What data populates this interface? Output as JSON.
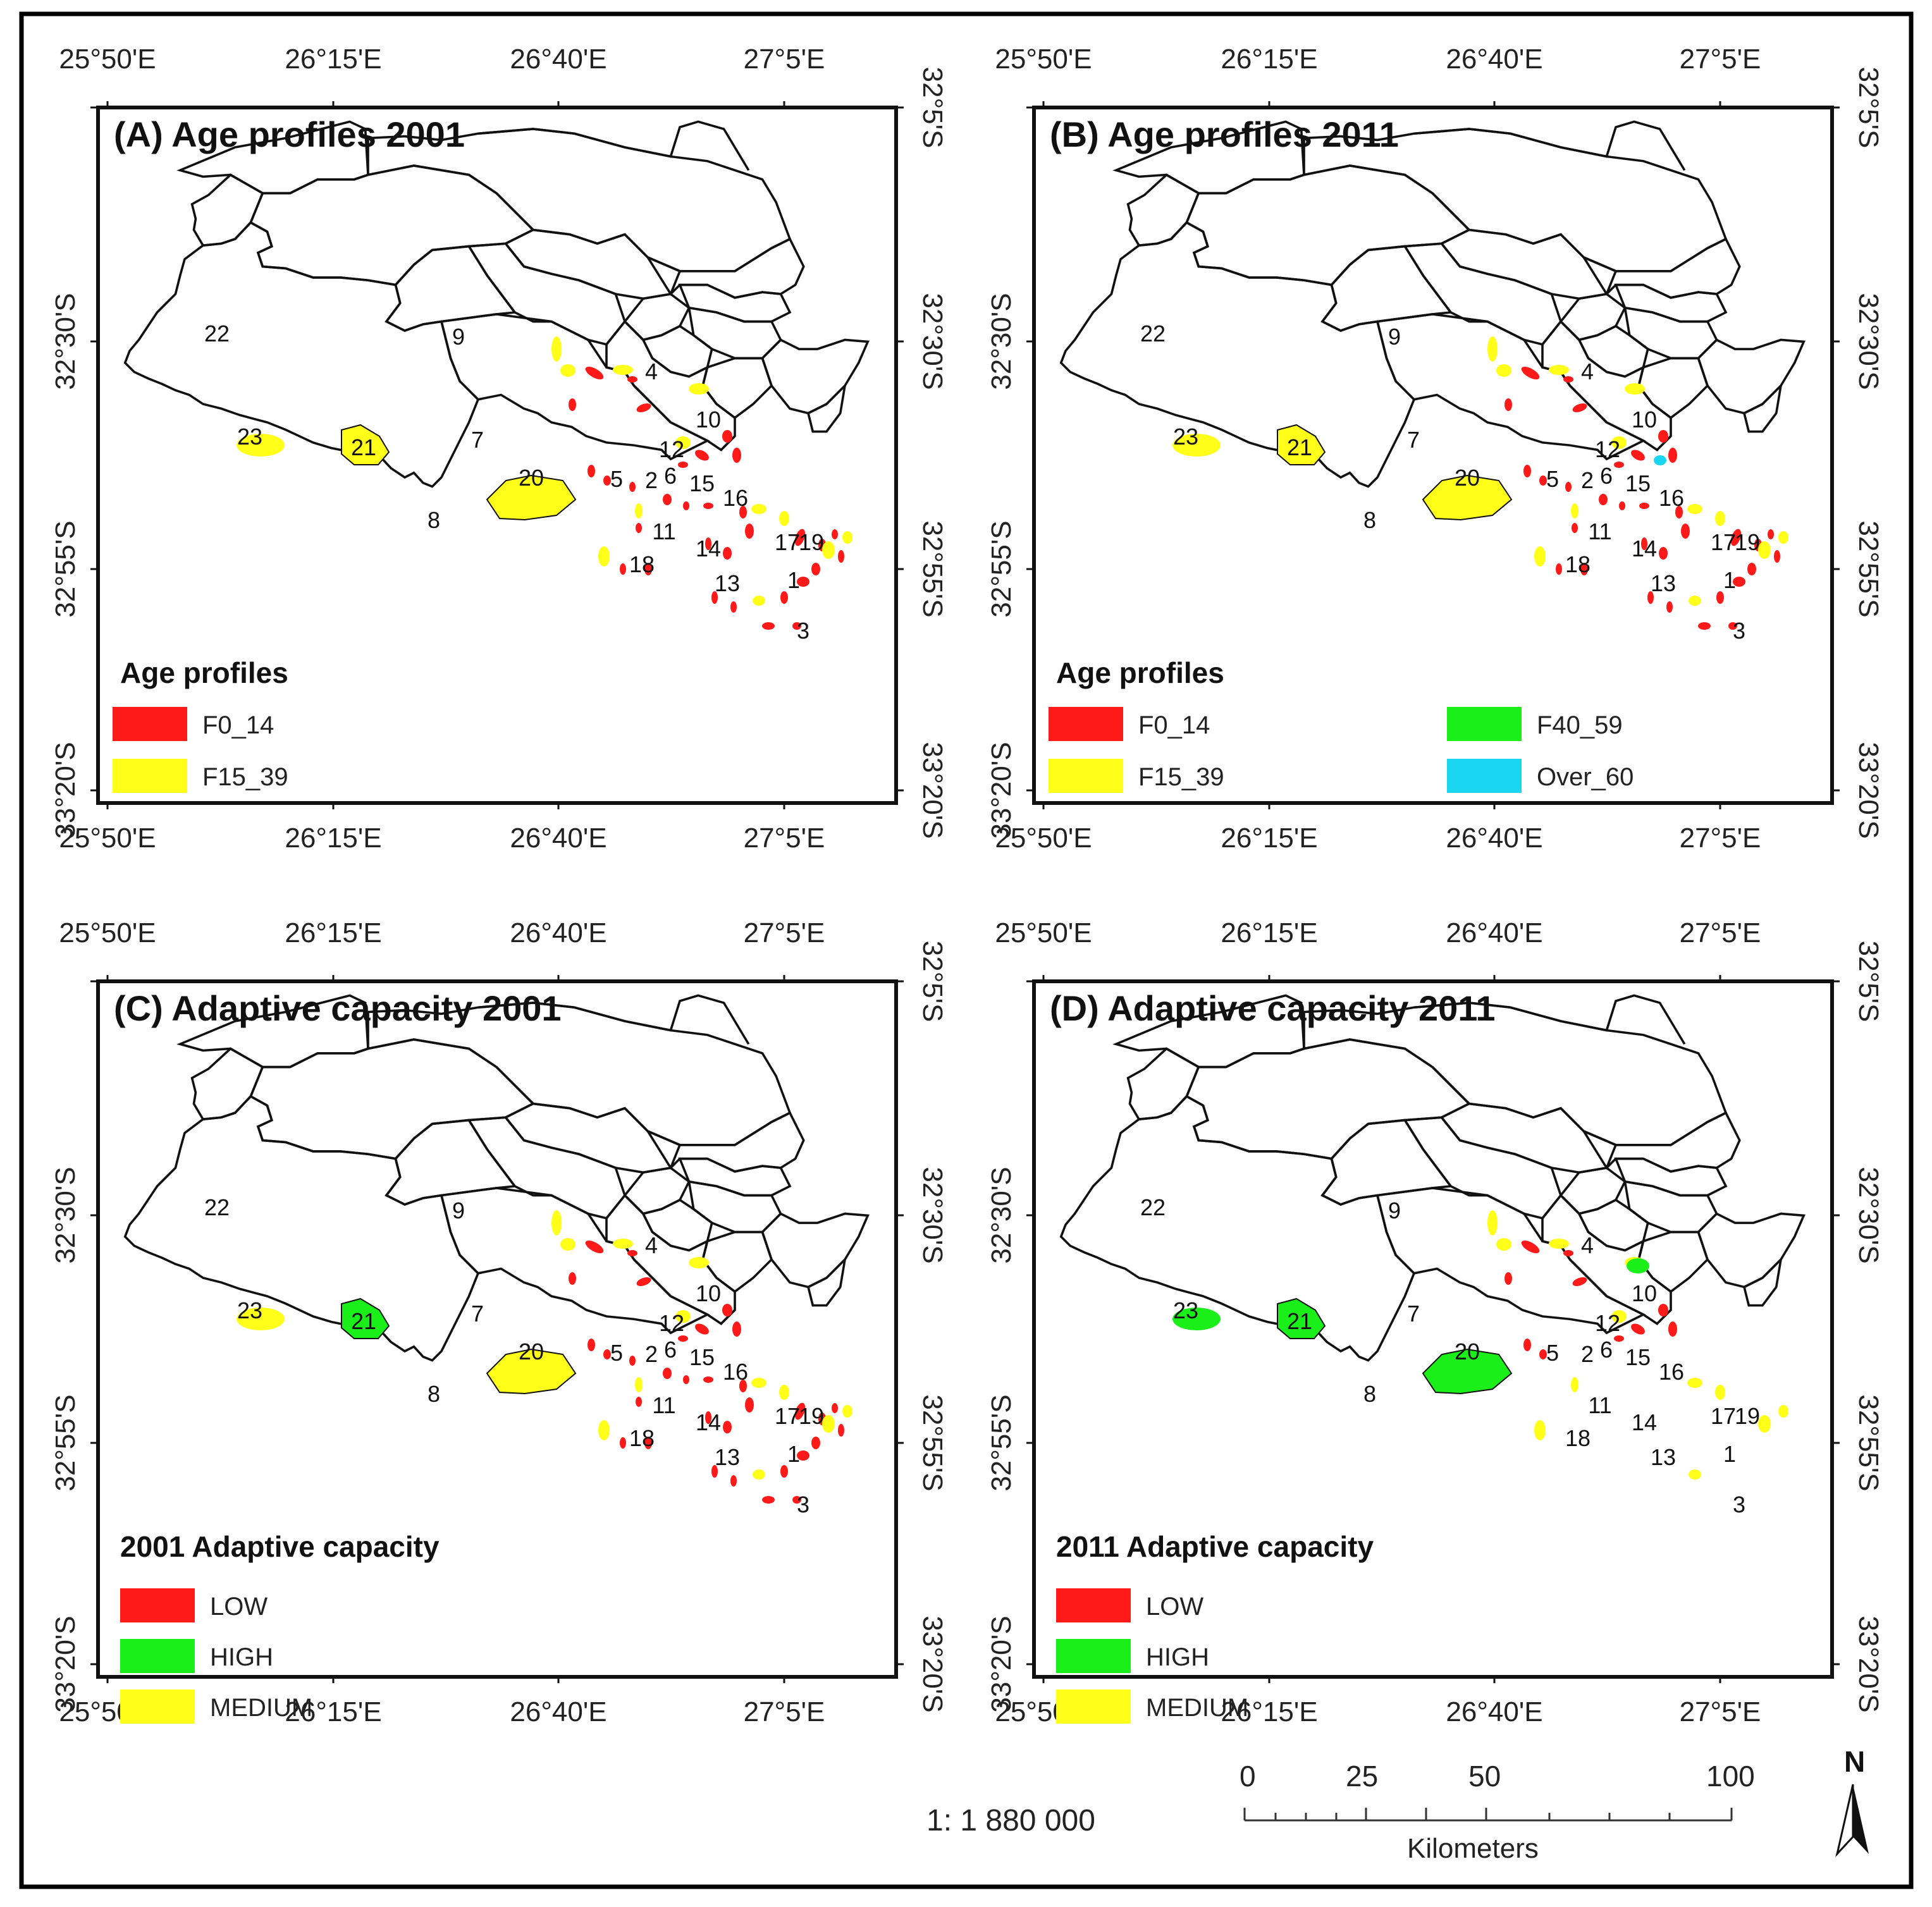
{
  "panels": [
    {
      "id": "A",
      "title": "(A) Age profiles 2001",
      "legend_title": "Age profiles",
      "legend": [
        {
          "label": "F0_14",
          "color": "#ff1a1a"
        },
        {
          "label": "F15_39",
          "color": "#ffff1a"
        }
      ],
      "fills": {
        "ward20": "#ffff1a",
        "ward21": "#ffff1a",
        "ward23": "#ffff1a"
      }
    },
    {
      "id": "B",
      "title": "(B) Age profiles 2011",
      "legend_title": "Age profiles",
      "legend": [
        {
          "label": "F0_14",
          "color": "#ff1a1a"
        },
        {
          "label": "F15_39",
          "color": "#ffff1a"
        },
        {
          "label": "F40_59",
          "color": "#1aef1a"
        },
        {
          "label": "Over_60",
          "color": "#1ad6f0"
        }
      ],
      "fills": {
        "ward20": "#ffff1a",
        "ward21": "#ffff1a",
        "ward23": "#ffff1a"
      }
    },
    {
      "id": "C",
      "title": "(C) Adaptive capacity 2001",
      "legend_title": "2001 Adaptive capacity",
      "legend": [
        {
          "label": "LOW",
          "color": "#ff1a1a"
        },
        {
          "label": "HIGH",
          "color": "#1aef1a"
        },
        {
          "label": "MEDIUM",
          "color": "#ffff1a"
        }
      ],
      "fills": {
        "ward20": "#ffff1a",
        "ward21": "#1aef1a",
        "ward23": "#ffff1a"
      }
    },
    {
      "id": "D",
      "title": "(D) Adaptive capacity 2011",
      "legend_title": "2011 Adaptive capacity",
      "legend": [
        {
          "label": "LOW",
          "color": "#ff1a1a"
        },
        {
          "label": "HIGH",
          "color": "#1aef1a"
        },
        {
          "label": "MEDIUM",
          "color": "#ffff1a"
        }
      ],
      "fills": {
        "ward20": "#1aef1a",
        "ward21": "#1aef1a",
        "ward23": "#1aef1a"
      }
    }
  ],
  "longitude_labels": [
    "25°50'E",
    "26°15'E",
    "26°40'E",
    "27°5'E"
  ],
  "latitude_labels": [
    "32°5'S",
    "32°30'S",
    "32°55'S",
    "33°20'S"
  ],
  "ward_labels": [
    "22",
    "9",
    "4",
    "10",
    "23",
    "21",
    "7",
    "12",
    "20",
    "5",
    "2",
    "15",
    "16",
    "11",
    "8",
    "14",
    "18",
    "13",
    "1",
    "3",
    "6",
    "17",
    "19"
  ],
  "scale_text": "1: 1 880 000",
  "scale_bar": {
    "ticks": [
      "0",
      "25",
      "50",
      "100"
    ],
    "unit": "Kilometers"
  },
  "north_arrow": "N",
  "colors": {
    "red": "#ff1a1a",
    "yellow": "#ffff1a",
    "green": "#1aef1a",
    "cyan": "#1ad6f0"
  }
}
